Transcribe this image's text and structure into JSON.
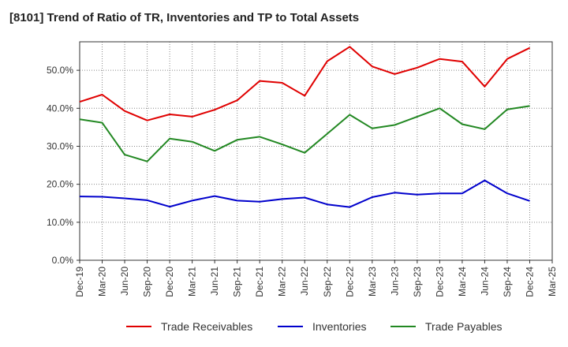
{
  "chart_data": {
    "type": "line",
    "title": "[8101]  Trend of Ratio of TR, Inventories and TP to Total Assets",
    "xlabel": "",
    "ylabel": "",
    "ylim": [
      0,
      0.575
    ],
    "y_ticks": [
      0,
      0.1,
      0.2,
      0.3,
      0.4,
      0.5
    ],
    "y_tick_labels": [
      "0.0%",
      "10.0%",
      "20.0%",
      "30.0%",
      "40.0%",
      "50.0%"
    ],
    "x_tick_labels": [
      "Dec-19",
      "Mar-20",
      "Jun-20",
      "Sep-20",
      "Dec-20",
      "Mar-21",
      "Jun-21",
      "Sep-21",
      "Dec-21",
      "Mar-22",
      "Jun-22",
      "Sep-22",
      "Dec-22",
      "Mar-23",
      "Jun-23",
      "Sep-23",
      "Dec-23",
      "Mar-24",
      "Jun-24",
      "Sep-24",
      "Dec-24",
      "Mar-25"
    ],
    "categories": [
      "Dec-19",
      "Mar-20",
      "Jun-20",
      "Sep-20",
      "Dec-20",
      "Mar-21",
      "Jun-21",
      "Sep-21",
      "Dec-21",
      "Mar-22",
      "Jun-22",
      "Sep-22",
      "Dec-22",
      "Mar-23",
      "Jun-23",
      "Sep-23",
      "Dec-23",
      "Mar-24",
      "Jun-24",
      "Sep-24",
      "Dec-24"
    ],
    "grid": true,
    "legend_position": "bottom",
    "series": [
      {
        "name": "Trade Receivables",
        "color": "#e00000",
        "values": [
          0.417,
          0.436,
          0.393,
          0.368,
          0.384,
          0.378,
          0.396,
          0.421,
          0.472,
          0.467,
          0.433,
          0.524,
          0.562,
          0.51,
          0.49,
          0.507,
          0.53,
          0.523,
          0.457,
          0.53,
          0.559
        ]
      },
      {
        "name": "Inventories",
        "color": "#0000cc",
        "values": [
          0.168,
          0.167,
          0.163,
          0.158,
          0.141,
          0.157,
          0.169,
          0.157,
          0.154,
          0.161,
          0.165,
          0.147,
          0.14,
          0.166,
          0.178,
          0.173,
          0.176,
          0.176,
          0.21,
          0.176,
          0.156
        ]
      },
      {
        "name": "Trade Payables",
        "color": "#228822",
        "values": [
          0.371,
          0.362,
          0.278,
          0.26,
          0.32,
          0.312,
          0.288,
          0.317,
          0.325,
          0.305,
          0.283,
          0.333,
          0.383,
          0.347,
          0.356,
          0.378,
          0.4,
          0.358,
          0.345,
          0.397,
          0.406
        ]
      }
    ]
  },
  "colors": {
    "grid": "#888888",
    "axis": "#333333"
  }
}
